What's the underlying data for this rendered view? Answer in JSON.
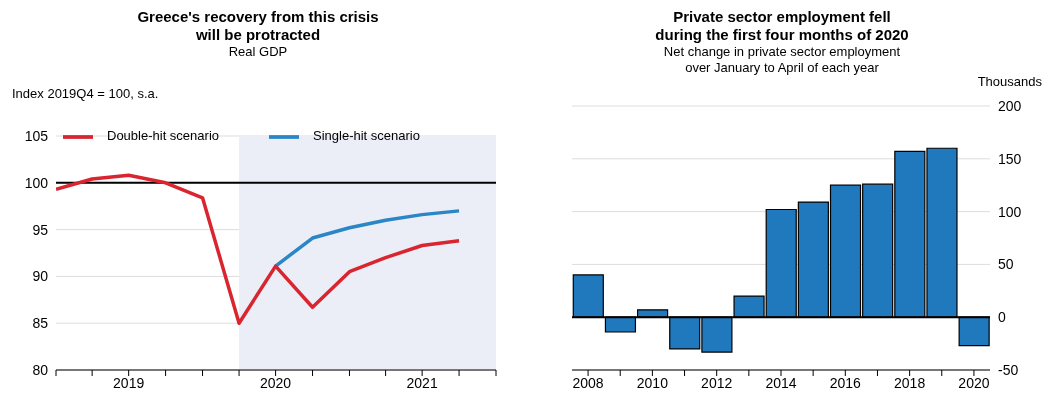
{
  "chart_data": [
    {
      "type": "line",
      "title": "Greece's recovery from this crisis\nwill be protracted",
      "subtitle": "Real GDP",
      "ylabel": "Index 2019Q4 = 100, s.a.",
      "x": [
        "2019-01",
        "2019-04",
        "2019-07",
        "2019-10",
        "2020-01",
        "2020-04",
        "2020-07",
        "2020-10",
        "2021-01",
        "2021-04",
        "2021-07",
        "2021-10"
      ],
      "series": [
        {
          "name": "Single-hit scenario",
          "color": "#2b86c6",
          "values": [
            null,
            null,
            null,
            null,
            null,
            null,
            91.1,
            94.1,
            95.2,
            96.0,
            96.6,
            97.0
          ]
        },
        {
          "name": "Double-hit scenario",
          "color": "#d9252f",
          "values": [
            99.3,
            100.4,
            100.8,
            100.0,
            98.4,
            85.0,
            91.1,
            86.7,
            90.5,
            92.0,
            93.3,
            93.8
          ]
        }
      ],
      "xlim": [
        "2019-01",
        "2022-01"
      ],
      "xticks": [
        {
          "value": "2019-01",
          "label": null
        },
        {
          "value": "2019-04",
          "label": null
        },
        {
          "value": "2019-07",
          "label": "2019"
        },
        {
          "value": "2019-10",
          "label": null
        },
        {
          "value": "2020-01",
          "label": null
        },
        {
          "value": "2020-04",
          "label": null
        },
        {
          "value": "2020-07",
          "label": "2020"
        },
        {
          "value": "2020-10",
          "label": null
        },
        {
          "value": "2021-01",
          "label": null
        },
        {
          "value": "2021-04",
          "label": null
        },
        {
          "value": "2021-07",
          "label": "2021"
        },
        {
          "value": "2021-10",
          "label": null
        },
        {
          "value": "2022-01",
          "label": null
        }
      ],
      "ylim": [
        80,
        105
      ],
      "yticks": [
        80,
        85,
        90,
        95,
        100,
        105
      ],
      "ref_lines": [
        {
          "axis": "y",
          "value": 100,
          "color": "#000000"
        }
      ],
      "bands": [
        {
          "axis": "x",
          "from": "2020-04",
          "to": "2022-01",
          "color": "#ebeef6"
        }
      ],
      "grid": "y",
      "legend": "top",
      "marker": "none",
      "line_style": "solid"
    },
    {
      "type": "bar",
      "title": "Private sector employment fell\nduring the first four months of 2020",
      "subtitle": "Net change in private sector employment\nover January to April of each year",
      "ylabel": "Thousands",
      "categories": [
        "2008",
        null,
        "2010",
        null,
        "2012",
        null,
        "2014",
        null,
        "2016",
        null,
        "2018",
        null,
        "2020"
      ],
      "values": [
        40,
        -14,
        7,
        -30,
        -33,
        20,
        102,
        109,
        125,
        126,
        157,
        160,
        -27
      ],
      "color": "#2179bd",
      "ylim": [
        -50,
        200
      ],
      "yticks": [
        -50,
        0,
        50,
        100,
        150,
        200
      ],
      "grid": "y"
    }
  ]
}
